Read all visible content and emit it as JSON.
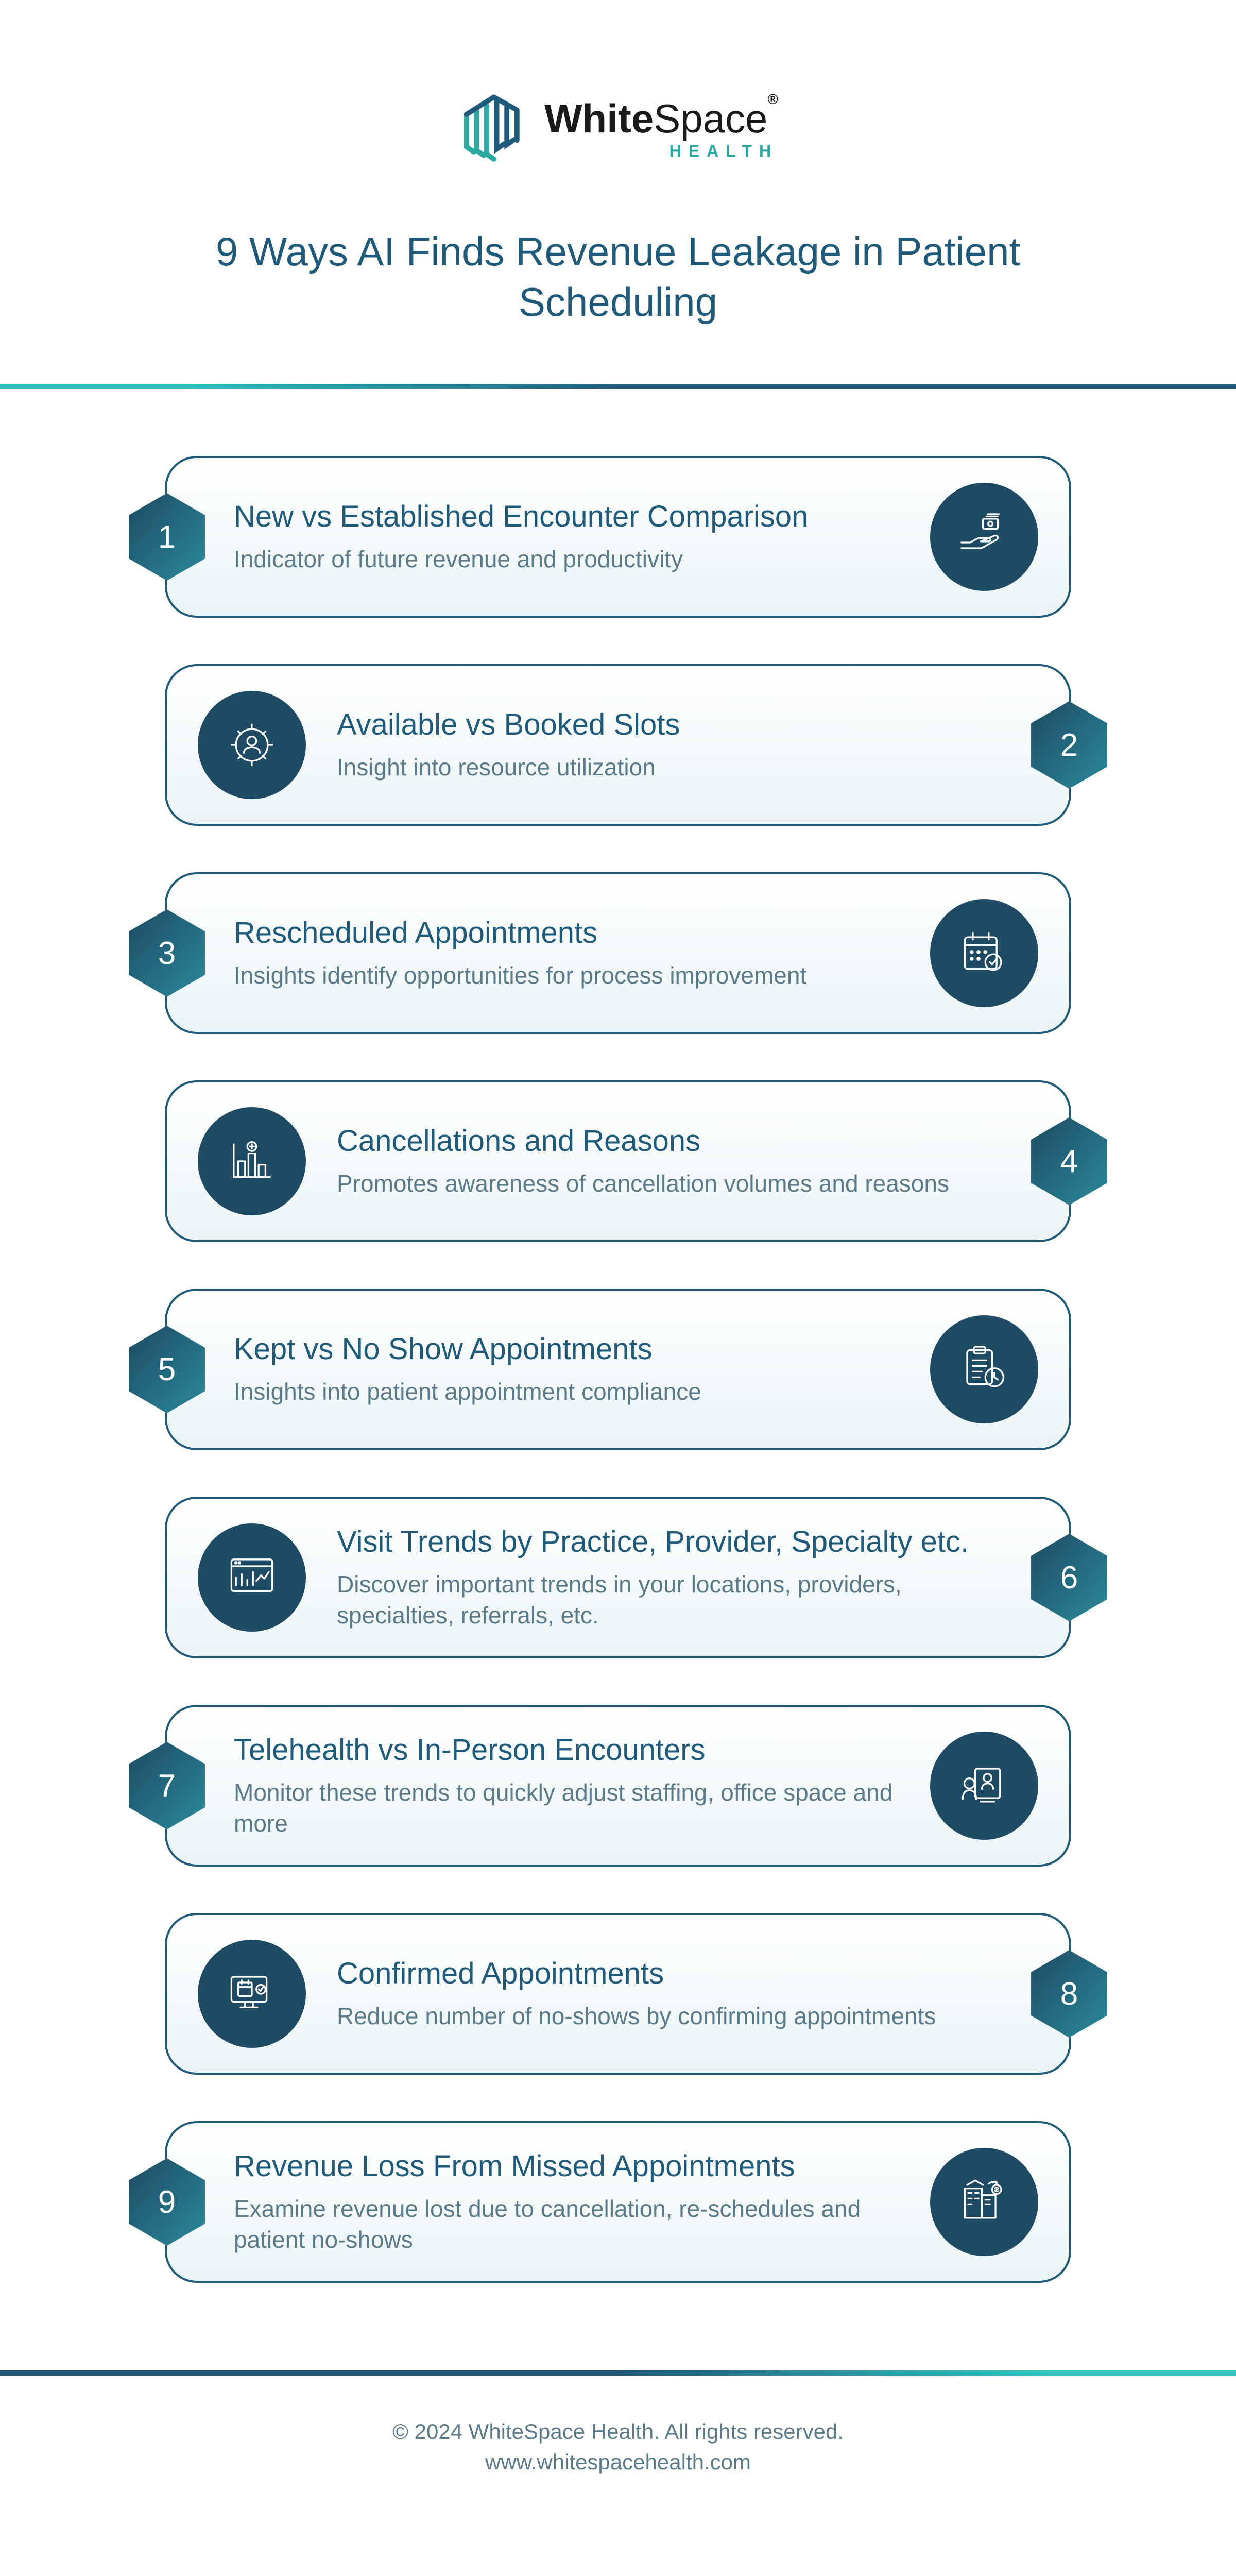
{
  "logo": {
    "brand_main": "WhiteSpace",
    "brand_sub": "HEALTH",
    "reg_mark": "®",
    "mark_color_1": "#1f5a7a",
    "mark_color_2": "#2aa9a3"
  },
  "title": "9 Ways AI Finds Revenue Leakage in Patient Scheduling",
  "colors": {
    "card_border": "#1f5a7a",
    "card_bg_top": "#ffffff",
    "card_bg_bottom": "#eaf4f7",
    "title_color": "#1f5a7a",
    "desc_color": "#5b7a89",
    "icon_bg": "#1e4a63",
    "hex_grad_1": "#1e4a63",
    "hex_grad_2": "#2a8a9a",
    "divider_teal": "#2ec4c0",
    "divider_blue": "#1f5a7a"
  },
  "cards": [
    {
      "num": "1",
      "side": "odd",
      "title": "New vs Established Encounter Comparison",
      "desc": "Indicator of future revenue and productivity",
      "icon": "hand-money"
    },
    {
      "num": "2",
      "side": "even",
      "title": "Available vs Booked Slots",
      "desc": "Insight into resource utilization",
      "icon": "gear-person"
    },
    {
      "num": "3",
      "side": "odd",
      "title": "Rescheduled Appointments",
      "desc": "Insights identify opportunities for process improvement",
      "icon": "calendar-check"
    },
    {
      "num": "4",
      "side": "even",
      "title": "Cancellations and Reasons",
      "desc": "Promotes awareness of cancellation volumes and reasons",
      "icon": "bar-chart"
    },
    {
      "num": "5",
      "side": "odd",
      "title": "Kept vs No Show Appointments",
      "desc": "Insights into patient appointment compliance",
      "icon": "clipboard-clock"
    },
    {
      "num": "6",
      "side": "even",
      "title": "Visit Trends by Practice, Provider, Specialty etc.",
      "desc": "Discover important trends in your locations, providers, specialties, referrals, etc.",
      "icon": "dashboard-chart"
    },
    {
      "num": "7",
      "side": "odd",
      "title": "Telehealth vs In-Person Encounters",
      "desc": "Monitor these trends to quickly adjust staffing, office space and more",
      "icon": "telehealth"
    },
    {
      "num": "8",
      "side": "even",
      "title": "Confirmed Appointments",
      "desc": "Reduce number of no-shows by confirming appointments",
      "icon": "monitor-calendar"
    },
    {
      "num": "9",
      "side": "odd",
      "title": "Revenue Loss From Missed Appointments",
      "desc": "Examine revenue lost due to cancellation, re-schedules and patient no-shows",
      "icon": "building-money"
    }
  ],
  "footer": {
    "copyright": "© 2024 WhiteSpace Health. All rights reserved.",
    "url": "www.whitespacehealth.com"
  }
}
